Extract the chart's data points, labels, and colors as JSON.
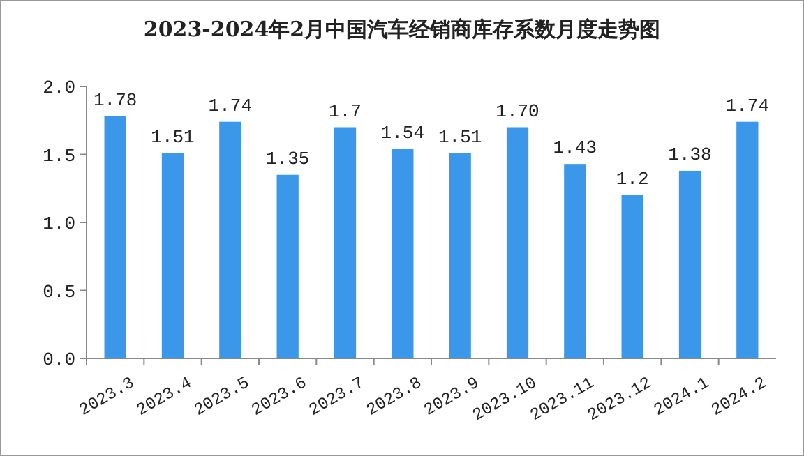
{
  "chart_data": {
    "type": "bar",
    "title": "2023-2024年2月中国汽车经销商库存系数月度走势图",
    "categories": [
      "2023.3",
      "2023.4",
      "2023.5",
      "2023.6",
      "2023.7",
      "2023.8",
      "2023.9",
      "2023.10",
      "2023.11",
      "2023.12",
      "2024.1",
      "2024.2"
    ],
    "values": [
      1.78,
      1.51,
      1.74,
      1.35,
      1.7,
      1.54,
      1.51,
      1.7,
      1.43,
      1.2,
      1.38,
      1.74
    ],
    "value_labels": [
      "1.78",
      "1.51",
      "1.74",
      "1.35",
      "1.7",
      "1.54",
      "1.51",
      "1.70",
      "1.43",
      "1.2",
      "1.38",
      "1.74"
    ],
    "color": "#3a97ea",
    "ylim": [
      0,
      2
    ],
    "yticks": [
      {
        "value": 0,
        "label": "0.0"
      },
      {
        "value": 0.5,
        "label": "0.5"
      },
      {
        "value": 1,
        "label": "1.0"
      },
      {
        "value": 1.5,
        "label": "1.5"
      },
      {
        "value": 2,
        "label": "2.0"
      }
    ],
    "grid": false
  }
}
